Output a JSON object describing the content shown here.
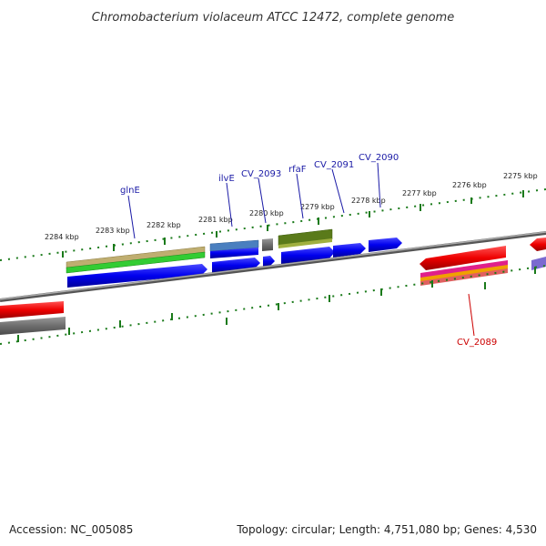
{
  "title": "Chromobacterium violaceum ATCC 12472, complete genome",
  "footer": {
    "accession": "Accession: NC_005085",
    "summary": "Topology: circular; Length: 4,751,080 bp; Genes: 4,530"
  },
  "tick_labels": [
    "2284 kbp",
    "2283 kbp",
    "2282 kbp",
    "2281 kbp",
    "2280 kbp",
    "2279 kbp",
    "2278 kbp",
    "2277 kbp",
    "2276 kbp",
    "2275 kbp"
  ],
  "gene_labels": {
    "glnE": "glnE",
    "ilvE": "ilvE",
    "cv2093": "CV_2093",
    "rfaF": "rfaF",
    "cv2091": "CV_2091",
    "cv2090": "CV_2090",
    "cv2089": "CV_2089"
  },
  "colors": {
    "backbone": "#808080",
    "tick": "#1a7a1a",
    "gene_label_blue": "#1a1aa6",
    "gene_label_red": "#cc0000",
    "forward_cds": "#0000ee",
    "reverse_cds": "#ee0000",
    "tan_band": "#bfae70",
    "green_band": "#33cc33",
    "steel_blue_band": "#4a7fbf",
    "olive_band": "#5a7a1a",
    "gray_band": "#707070",
    "magenta_band": "#e0208a",
    "orange_band": "#f0a000",
    "purple_band": "#7a6ad0"
  }
}
